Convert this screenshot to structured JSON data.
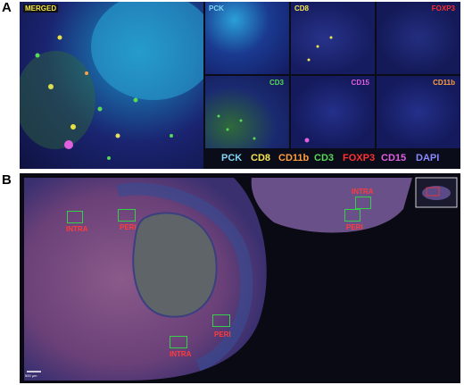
{
  "panel_a": {
    "letter": "A",
    "merged_label": "MERGED",
    "tiles": [
      {
        "label": "PCK",
        "color": "#7fd6f0"
      },
      {
        "label": "CD8",
        "color": "#f5e650"
      },
      {
        "label": "FOXP3",
        "color": "#ff3030"
      },
      {
        "label": "CD3",
        "color": "#58d858"
      },
      {
        "label": "CD15",
        "color": "#e060e0"
      },
      {
        "label": "CD11b",
        "color": "#ffa040"
      }
    ],
    "legend": [
      {
        "label": "PCK",
        "color": "#7fd6f0"
      },
      {
        "label": "CD8",
        "color": "#f5e650"
      },
      {
        "label": "CD11b",
        "color": "#ffa040"
      },
      {
        "label": "CD3",
        "color": "#58d858"
      },
      {
        "label": "FOXP3",
        "color": "#ff3030"
      },
      {
        "label": "CD15",
        "color": "#e060e0"
      },
      {
        "label": "DAPI",
        "color": "#8a8aff"
      }
    ]
  },
  "panel_b": {
    "letter": "B",
    "regions": [
      "INTRA",
      "PERI",
      "INTRA",
      "PERI",
      "PERI",
      "INTRA"
    ],
    "scale_bar": "500 μm"
  }
}
